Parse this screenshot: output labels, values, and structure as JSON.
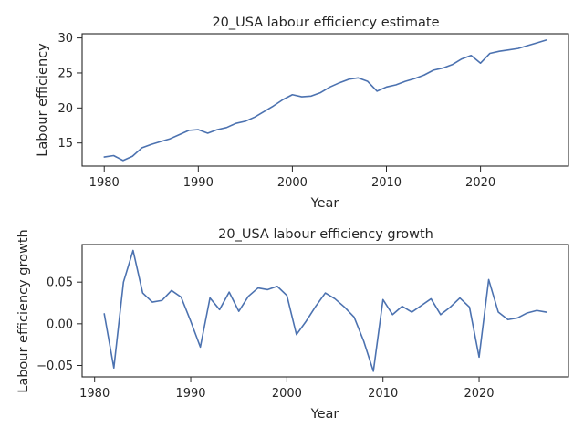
{
  "chart_data": [
    {
      "type": "line",
      "title": "20_USA labour efficiency estimate",
      "xlabel": "Year",
      "ylabel": "Labour efficiency",
      "xlim": [
        1977.65,
        2029.35
      ],
      "ylim": [
        11.7,
        30.6
      ],
      "xticks": [
        1980,
        1990,
        2000,
        2010,
        2020
      ],
      "xtick_labels": [
        "1980",
        "1990",
        "2000",
        "2010",
        "2020"
      ],
      "yticks": [
        15,
        20,
        25,
        30
      ],
      "ytick_labels": [
        "15",
        "20",
        "25",
        "30"
      ],
      "grid": false,
      "color": "#4c72b0",
      "series": [
        {
          "x": [
            1980,
            1981,
            1982,
            1983,
            1984,
            1985,
            1986,
            1987,
            1988,
            1989,
            1990,
            1991,
            1992,
            1993,
            1994,
            1995,
            1996,
            1997,
            1998,
            1999,
            2000,
            2001,
            2002,
            2003,
            2004,
            2005,
            2006,
            2007,
            2008,
            2009,
            2010,
            2011,
            2012,
            2013,
            2014,
            2015,
            2016,
            2017,
            2018,
            2019,
            2020,
            2021,
            2022,
            2023,
            2024,
            2025,
            2026,
            2027
          ],
          "y": [
            13.0,
            13.2,
            12.5,
            13.1,
            14.3,
            14.8,
            15.2,
            15.6,
            16.2,
            16.8,
            16.9,
            16.4,
            16.9,
            17.2,
            17.8,
            18.1,
            18.7,
            19.5,
            20.3,
            21.2,
            21.9,
            21.6,
            21.7,
            22.2,
            23.0,
            23.6,
            24.1,
            24.3,
            23.8,
            22.4,
            23.0,
            23.3,
            23.8,
            24.2,
            24.7,
            25.4,
            25.7,
            26.2,
            27.0,
            27.5,
            26.4,
            27.8,
            28.1,
            28.3,
            28.5,
            28.9,
            29.3,
            29.7
          ]
        }
      ]
    },
    {
      "type": "line",
      "title": "20_USA labour efficiency growth",
      "xlabel": "Year",
      "ylabel": "Labour efficiency growth",
      "xlim": [
        1978.7,
        2029.3
      ],
      "ylim": [
        -0.0637,
        0.0951
      ],
      "xticks": [
        1980,
        1990,
        2000,
        2010,
        2020
      ],
      "xtick_labels": [
        "1980",
        "1990",
        "2000",
        "2010",
        "2020"
      ],
      "yticks": [
        -0.05,
        0.0,
        0.05
      ],
      "ytick_labels": [
        "−0.05",
        "0.00",
        "0.05"
      ],
      "grid": false,
      "color": "#4c72b0",
      "series": [
        {
          "x": [
            1981,
            1982,
            1983,
            1984,
            1985,
            1986,
            1987,
            1988,
            1989,
            1990,
            1991,
            1992,
            1993,
            1994,
            1995,
            1996,
            1997,
            1998,
            1999,
            2000,
            2001,
            2002,
            2003,
            2004,
            2005,
            2006,
            2007,
            2008,
            2009,
            2010,
            2011,
            2012,
            2013,
            2014,
            2015,
            2016,
            2017,
            2018,
            2019,
            2020,
            2021,
            2022,
            2023,
            2024,
            2025,
            2026,
            2027
          ],
          "y": [
            0.012,
            -0.053,
            0.05,
            0.088,
            0.037,
            0.026,
            0.028,
            0.04,
            0.032,
            0.003,
            -0.028,
            0.031,
            0.017,
            0.038,
            0.015,
            0.033,
            0.043,
            0.041,
            0.045,
            0.034,
            -0.013,
            0.003,
            0.021,
            0.037,
            0.03,
            0.02,
            0.008,
            -0.021,
            -0.057,
            0.029,
            0.011,
            0.021,
            0.014,
            0.022,
            0.03,
            0.011,
            0.02,
            0.031,
            0.02,
            -0.04,
            0.053,
            0.014,
            0.005,
            0.007,
            0.013,
            0.016,
            0.014
          ]
        }
      ]
    }
  ]
}
